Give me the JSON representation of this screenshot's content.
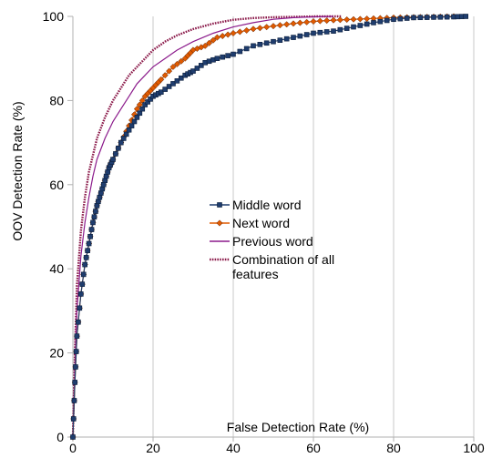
{
  "chart_data": {
    "type": "line",
    "title": "",
    "xlabel": "False Detection Rate (%)",
    "ylabel": "OOV Detection Rate (%)",
    "xlim": [
      0,
      100
    ],
    "ylim": [
      0,
      100
    ],
    "xticks": [
      "0",
      "20",
      "40",
      "60",
      "80",
      "100"
    ],
    "yticks": [
      "0",
      "20",
      "40",
      "60",
      "80",
      "100"
    ],
    "grid": "vertical",
    "legend_position": "center",
    "series": [
      {
        "name": "Middle word",
        "color": "#1f3d6e",
        "marker": "square",
        "x": [
          0,
          0.5,
          1,
          2,
          3,
          4,
          5,
          6,
          7,
          8,
          9,
          10,
          12,
          14,
          16,
          18,
          20,
          22,
          25,
          28,
          30,
          33,
          36,
          40,
          45,
          50,
          55,
          60,
          65,
          70,
          75,
          80,
          85,
          90,
          95,
          98
        ],
        "y": [
          0,
          13,
          24,
          34,
          41,
          46,
          51,
          55,
          58,
          61,
          64,
          66,
          70,
          73,
          76,
          79,
          81,
          82,
          84,
          86,
          87,
          89,
          90,
          91,
          93,
          94,
          95,
          96,
          96.5,
          97.5,
          98.5,
          99.3,
          99.7,
          99.8,
          99.9,
          100
        ]
      },
      {
        "name": "Next word",
        "color": "#e05a00",
        "marker": "diamond",
        "x": [
          0,
          0.5,
          1,
          2,
          3,
          4,
          5,
          6,
          7,
          8,
          9,
          10,
          12,
          14,
          16,
          18,
          20,
          22,
          25,
          28,
          30,
          33,
          36,
          40,
          45,
          50,
          55,
          60,
          65,
          70,
          75,
          80,
          85,
          90,
          95
        ],
        "y": [
          0,
          13,
          24,
          34,
          41,
          46,
          51,
          55,
          58,
          61,
          64,
          66,
          70,
          74,
          78,
          81,
          83,
          85,
          88,
          90,
          92,
          93,
          95,
          96,
          97,
          97.7,
          98.3,
          98.8,
          99.1,
          99.3,
          99.5,
          99.7,
          99.8,
          99.9,
          100
        ]
      },
      {
        "name": "Previous word",
        "color": "#8b1a8b",
        "marker": "none",
        "x": [
          0,
          0.5,
          1,
          2,
          3,
          4,
          5,
          6,
          8,
          10,
          12,
          14,
          16,
          18,
          20,
          23,
          26,
          30,
          35,
          40,
          45,
          50,
          55,
          60,
          65
        ],
        "y": [
          0,
          16,
          30,
          43,
          51,
          57,
          62,
          66,
          71,
          75,
          78,
          81,
          84,
          86,
          88,
          90,
          92,
          94,
          96,
          97.5,
          98.5,
          99.3,
          99.7,
          99.9,
          100
        ]
      },
      {
        "name": "Combination of all features",
        "color": "#8b1a4a",
        "marker": "none",
        "dashed": true,
        "x": [
          0,
          0.5,
          1,
          2,
          3,
          4,
          5,
          6,
          8,
          10,
          12,
          14,
          16,
          18,
          20,
          23,
          26,
          30,
          35,
          40,
          45,
          50,
          55,
          60,
          65,
          67
        ],
        "y": [
          0,
          20,
          36,
          49,
          57,
          63,
          67,
          71,
          76,
          80,
          83,
          86,
          88,
          90,
          92,
          94,
          95.5,
          97,
          98.3,
          99.2,
          99.6,
          99.8,
          99.9,
          100,
          100,
          100
        ]
      }
    ]
  }
}
